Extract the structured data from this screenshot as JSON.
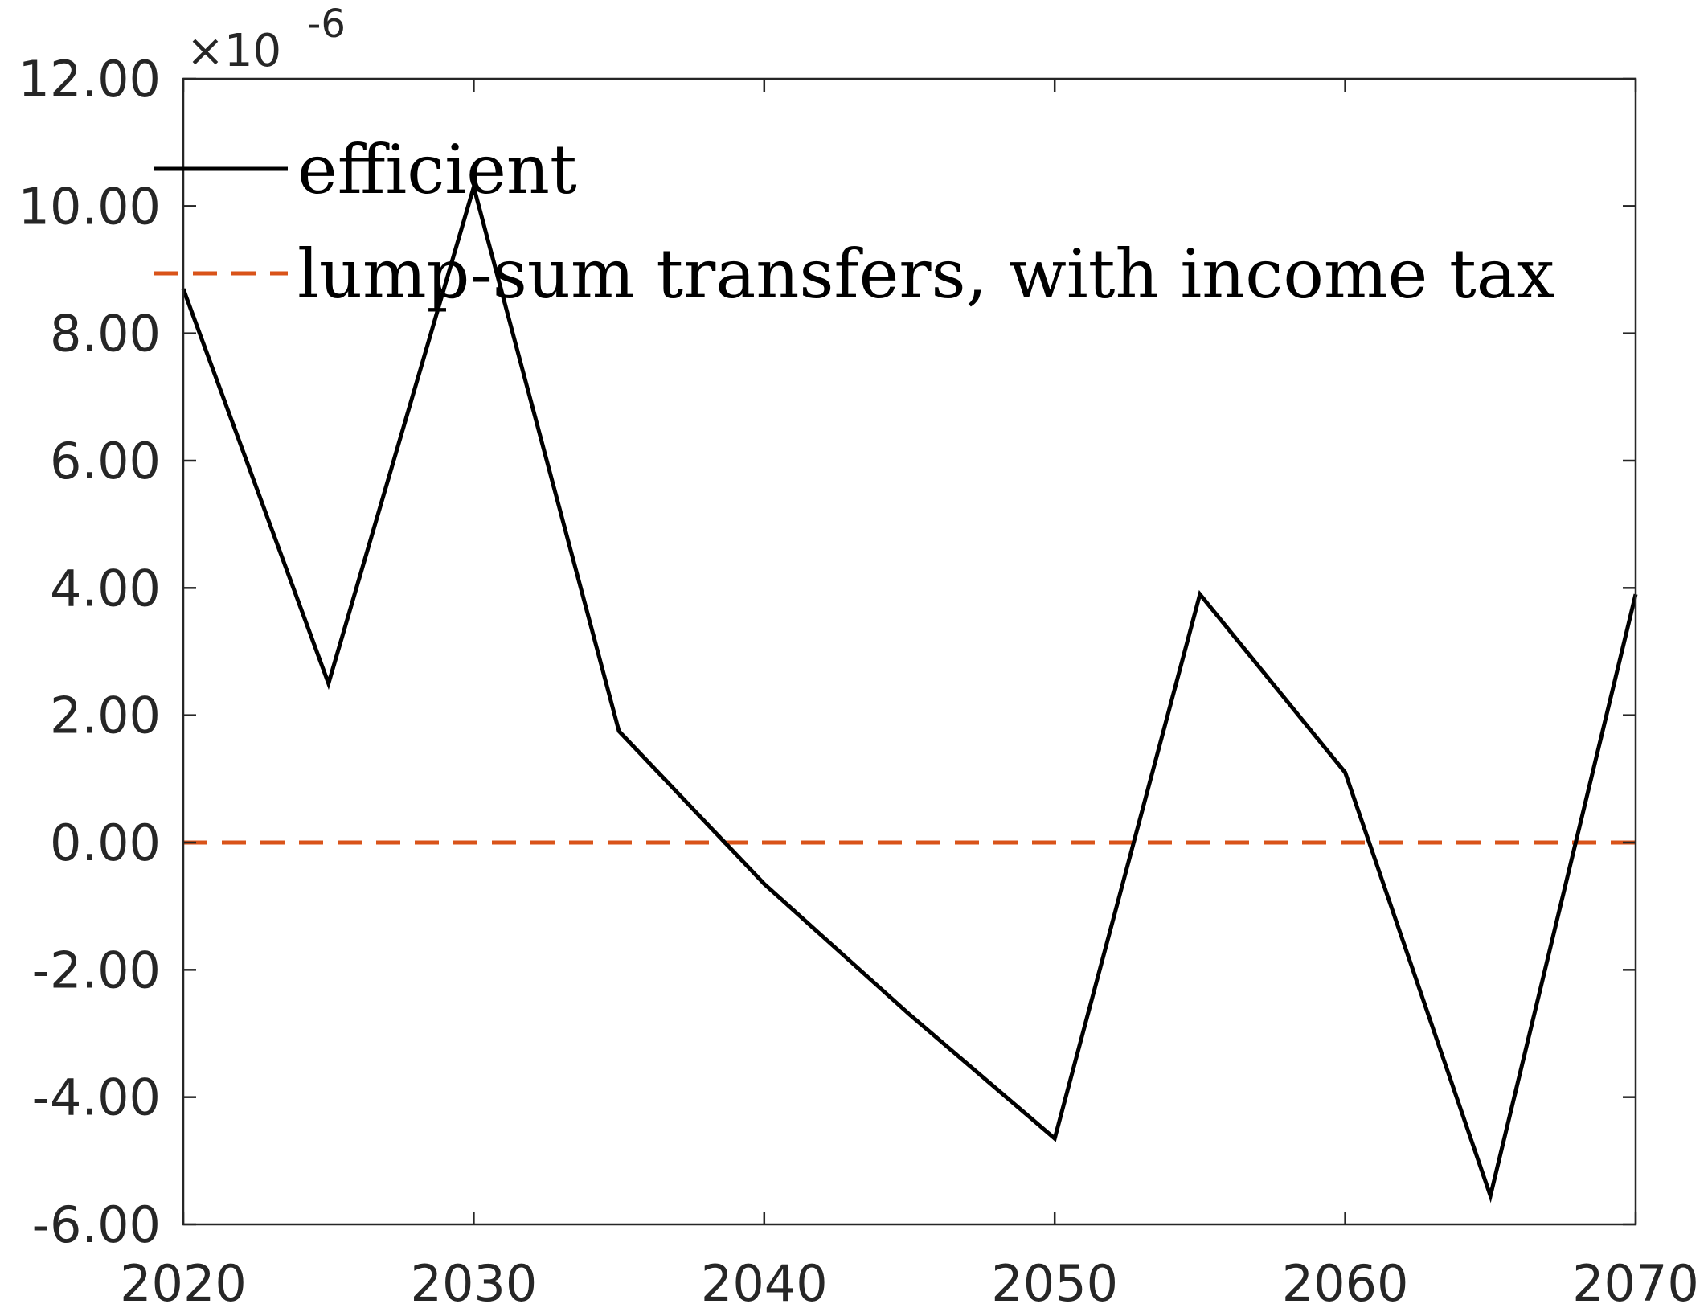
{
  "chart_data": {
    "type": "line",
    "title": "",
    "xlabel": "",
    "ylabel": "",
    "y_exponent_label": "-6",
    "x": [
      2020,
      2025,
      2030,
      2035,
      2040,
      2045,
      2050,
      2055,
      2060,
      2065,
      2070
    ],
    "xlim": [
      2020,
      2070
    ],
    "ylim": [
      -6,
      12
    ],
    "x_ticks": [
      2020,
      2030,
      2040,
      2050,
      2060,
      2070
    ],
    "x_tick_labels": [
      "2020",
      "2030",
      "2040",
      "2050",
      "2060",
      "2070"
    ],
    "y_ticks": [
      -6,
      -4,
      -2,
      0,
      2,
      4,
      6,
      8,
      10,
      12
    ],
    "y_tick_labels": [
      "-6.00",
      "-4.00",
      "-2.00",
      "0.00",
      "2.00",
      "4.00",
      "6.00",
      "8.00",
      "10.00",
      "12.00"
    ],
    "grid": false,
    "legend_position": "top-left",
    "series": [
      {
        "name": "efficient",
        "color": "#000000",
        "style": "solid",
        "values": [
          8.7,
          2.5,
          10.3,
          1.75,
          -0.65,
          -2.7,
          -4.65,
          3.9,
          1.1,
          -5.55,
          3.9
        ]
      },
      {
        "name": "lump-sum transfers, with income tax",
        "color": "#D95319",
        "style": "dashed",
        "values": [
          0,
          0,
          0,
          0,
          0,
          0,
          0,
          0,
          0,
          0,
          0
        ]
      }
    ]
  }
}
